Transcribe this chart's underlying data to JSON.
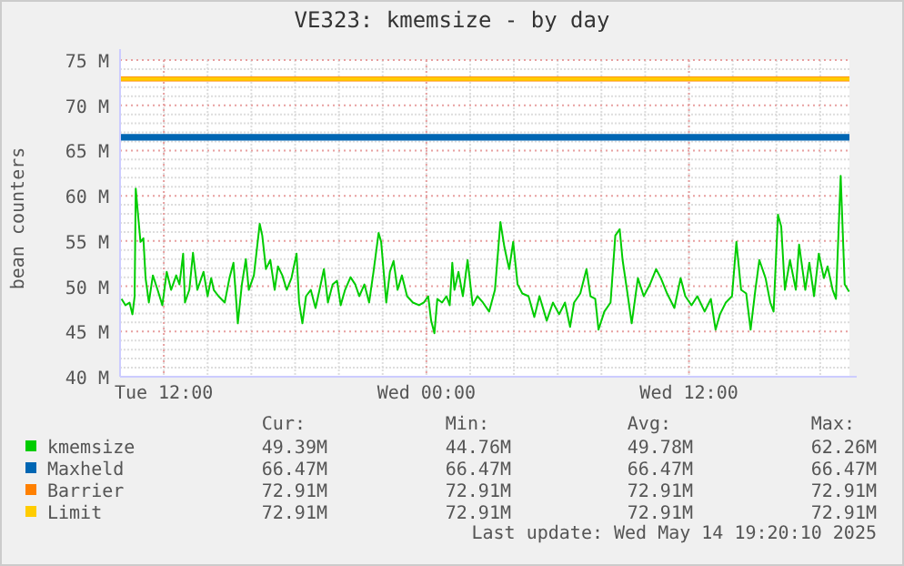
{
  "chart_data": {
    "type": "line",
    "title": "VE323: kmemsize - by day",
    "ylabel": "bean counters",
    "xlim": [
      "2025-05-13T10:00",
      "2025-05-14T19:20"
    ],
    "xticks": [
      {
        "value": "2025-05-13T12:00",
        "label": "Tue 12:00"
      },
      {
        "value": "2025-05-14T00:00",
        "label": "Wed 00:00"
      },
      {
        "value": "2025-05-14T12:00",
        "label": "Wed 12:00"
      }
    ],
    "ylim": [
      40,
      75
    ],
    "yticks": [
      {
        "value": 40,
        "label": "40 M"
      },
      {
        "value": 45,
        "label": "45 M"
      },
      {
        "value": 50,
        "label": "50 M"
      },
      {
        "value": 55,
        "label": "55 M"
      },
      {
        "value": 60,
        "label": "60 M"
      },
      {
        "value": 65,
        "label": "65 M"
      },
      {
        "value": 70,
        "label": "70 M"
      },
      {
        "value": 75,
        "label": "75 M"
      }
    ],
    "grid": true,
    "legend": "bottom",
    "marker": "none",
    "line_style": "solid",
    "series": [
      {
        "name": "kmemsize",
        "color": "#00cc00",
        "x": [
          "2025-05-13T10:04",
          "2025-05-13T10:15",
          "2025-05-13T10:26",
          "2025-05-13T10:34",
          "2025-05-13T10:40",
          "2025-05-13T10:43",
          "2025-05-13T10:50",
          "2025-05-13T10:56",
          "2025-05-13T11:04",
          "2025-05-13T11:10",
          "2025-05-13T11:19",
          "2025-05-13T11:30",
          "2025-05-13T11:43",
          "2025-05-13T11:56",
          "2025-05-13T12:08",
          "2025-05-13T12:20",
          "2025-05-13T12:34",
          "2025-05-13T12:43",
          "2025-05-13T12:53",
          "2025-05-13T12:58",
          "2025-05-13T13:10",
          "2025-05-13T13:20",
          "2025-05-13T13:32",
          "2025-05-13T13:49",
          "2025-05-13T14:00",
          "2025-05-13T14:10",
          "2025-05-13T14:17",
          "2025-05-13T14:30",
          "2025-05-13T14:47",
          "2025-05-13T15:00",
          "2025-05-13T15:11",
          "2025-05-13T15:23",
          "2025-05-13T15:34",
          "2025-05-13T15:45",
          "2025-05-13T15:53",
          "2025-05-13T16:07",
          "2025-05-13T16:23",
          "2025-05-13T16:30",
          "2025-05-13T16:40",
          "2025-05-13T16:52",
          "2025-05-13T17:04",
          "2025-05-13T17:13",
          "2025-05-13T17:25",
          "2025-05-13T17:37",
          "2025-05-13T17:50",
          "2025-05-13T18:04",
          "2025-05-13T18:11",
          "2025-05-13T18:20",
          "2025-05-13T18:30",
          "2025-05-13T18:43",
          "2025-05-13T18:56",
          "2025-05-13T19:07",
          "2025-05-13T19:19",
          "2025-05-13T19:30",
          "2025-05-13T19:43",
          "2025-05-13T19:55",
          "2025-05-13T20:05",
          "2025-05-13T20:17",
          "2025-05-13T20:32",
          "2025-05-13T20:45",
          "2025-05-13T20:56",
          "2025-05-13T21:10",
          "2025-05-13T21:23",
          "2025-05-13T21:35",
          "2025-05-13T21:49",
          "2025-05-13T21:56",
          "2025-05-13T22:10",
          "2025-05-13T22:20",
          "2025-05-13T22:30",
          "2025-05-13T22:41",
          "2025-05-13T22:53",
          "2025-05-13T23:07",
          "2025-05-13T23:23",
          "2025-05-13T23:40",
          "2025-05-13T23:53",
          "2025-05-14T00:05",
          "2025-05-14T00:13",
          "2025-05-14T00:22",
          "2025-05-14T00:30",
          "2025-05-14T00:43",
          "2025-05-14T00:55",
          "2025-05-14T01:04",
          "2025-05-14T01:11",
          "2025-05-14T01:17",
          "2025-05-14T01:28",
          "2025-05-14T01:40",
          "2025-05-14T01:53",
          "2025-05-14T02:07",
          "2025-05-14T02:20",
          "2025-05-14T02:35",
          "2025-05-14T02:52",
          "2025-05-14T03:08",
          "2025-05-14T03:23",
          "2025-05-14T03:34",
          "2025-05-14T03:47",
          "2025-05-14T03:58",
          "2025-05-14T04:10",
          "2025-05-14T04:23",
          "2025-05-14T04:40",
          "2025-05-14T04:56",
          "2025-05-14T05:10",
          "2025-05-14T05:30",
          "2025-05-14T05:47",
          "2025-05-14T06:04",
          "2025-05-14T06:20",
          "2025-05-14T06:34",
          "2025-05-14T06:45",
          "2025-05-14T07:02",
          "2025-05-14T07:19",
          "2025-05-14T07:30",
          "2025-05-14T07:43",
          "2025-05-14T07:52",
          "2025-05-14T08:08",
          "2025-05-14T08:25",
          "2025-05-14T08:38",
          "2025-05-14T08:50",
          "2025-05-14T08:58",
          "2025-05-14T09:10",
          "2025-05-14T09:23",
          "2025-05-14T09:40",
          "2025-05-14T09:56",
          "2025-05-14T10:13",
          "2025-05-14T10:30",
          "2025-05-14T10:43",
          "2025-05-14T11:00",
          "2025-05-14T11:20",
          "2025-05-14T11:37",
          "2025-05-14T11:50",
          "2025-05-14T12:07",
          "2025-05-14T12:23",
          "2025-05-14T12:43",
          "2025-05-14T13:00",
          "2025-05-14T13:13",
          "2025-05-14T13:25",
          "2025-05-14T13:41",
          "2025-05-14T13:58",
          "2025-05-14T14:10",
          "2025-05-14T14:23",
          "2025-05-14T14:37",
          "2025-05-14T14:49",
          "2025-05-14T15:02",
          "2025-05-14T15:13",
          "2025-05-14T15:30",
          "2025-05-14T15:43",
          "2025-05-14T15:52",
          "2025-05-14T16:04",
          "2025-05-14T16:13",
          "2025-05-14T16:23",
          "2025-05-14T16:37",
          "2025-05-14T16:53",
          "2025-05-14T17:02",
          "2025-05-14T17:19",
          "2025-05-14T17:30",
          "2025-05-14T17:43",
          "2025-05-14T17:56",
          "2025-05-14T18:10",
          "2025-05-14T18:20",
          "2025-05-14T18:34",
          "2025-05-14T18:43",
          "2025-05-14T18:56",
          "2025-05-14T19:07",
          "2025-05-14T19:19"
        ],
        "values": [
          48.6,
          47.9,
          48.2,
          46.9,
          48.9,
          60.8,
          57.6,
          54.9,
          55.3,
          50.9,
          48.2,
          51.2,
          49.6,
          47.9,
          51.6,
          49.6,
          51.2,
          50.2,
          53.6,
          48.2,
          49.6,
          53.7,
          49.6,
          51.6,
          48.9,
          50.9,
          49.6,
          48.9,
          48.2,
          50.9,
          52.6,
          45.9,
          50.2,
          53.0,
          49.6,
          51.2,
          56.9,
          55.6,
          51.9,
          52.9,
          49.6,
          52.2,
          51.2,
          49.6,
          50.9,
          53.6,
          48.2,
          45.9,
          48.9,
          49.6,
          47.6,
          49.6,
          51.9,
          48.2,
          50.2,
          50.6,
          47.9,
          49.6,
          51.0,
          50.2,
          48.9,
          50.2,
          48.2,
          51.6,
          55.9,
          54.9,
          48.2,
          51.6,
          52.8,
          49.6,
          51.2,
          48.9,
          48.2,
          47.9,
          48.2,
          48.9,
          46.2,
          44.8,
          48.6,
          48.2,
          48.9,
          47.9,
          52.6,
          49.6,
          51.6,
          48.9,
          52.9,
          47.9,
          48.9,
          48.2,
          47.2,
          49.6,
          57.1,
          54.3,
          51.9,
          54.9,
          50.2,
          49.2,
          48.9,
          46.6,
          48.9,
          46.2,
          48.2,
          46.9,
          48.2,
          45.5,
          48.2,
          49.2,
          51.9,
          48.9,
          48.6,
          45.2,
          47.2,
          48.2,
          55.6,
          56.3,
          52.9,
          49.6,
          45.9,
          50.9,
          48.9,
          50.2,
          51.9,
          50.9,
          49.2,
          47.6,
          50.9,
          48.9,
          47.9,
          48.9,
          47.2,
          48.6,
          45.2,
          46.9,
          48.2,
          48.9,
          54.9,
          49.6,
          49.2,
          45.2,
          49.6,
          52.9,
          50.9,
          48.2,
          47.2,
          57.9,
          56.6,
          49.6,
          52.9,
          49.6,
          54.6,
          49.6,
          52.6,
          48.9,
          53.6,
          50.9,
          52.2,
          49.6,
          48.6,
          62.2,
          50.2,
          49.4
        ]
      },
      {
        "name": "Maxheld",
        "color": "#0066b3",
        "x": [
          "2025-05-13T10:00",
          "2025-05-14T19:20"
        ],
        "values": [
          66.47,
          66.47
        ]
      },
      {
        "name": "Barrier",
        "color": "#ff8000",
        "x": [
          "2025-05-13T10:00",
          "2025-05-14T19:20"
        ],
        "values": [
          72.91,
          72.91
        ]
      },
      {
        "name": "Limit",
        "color": "#ffcc00",
        "x": [
          "2025-05-13T10:00",
          "2025-05-14T19:20"
        ],
        "values": [
          72.91,
          72.91
        ]
      }
    ],
    "annotations": [
      "Cur:",
      "Min:",
      "Avg:",
      "Max:",
      "49.39M",
      "44.76M",
      "49.78M",
      "62.26M",
      "66.47M",
      "66.47M",
      "66.47M",
      "66.47M",
      "72.91M",
      "72.91M",
      "72.91M",
      "72.91M",
      "72.91M",
      "72.91M",
      "72.91M",
      "72.91M",
      "Last update: Wed May 14 19:20:10 2025"
    ]
  }
}
